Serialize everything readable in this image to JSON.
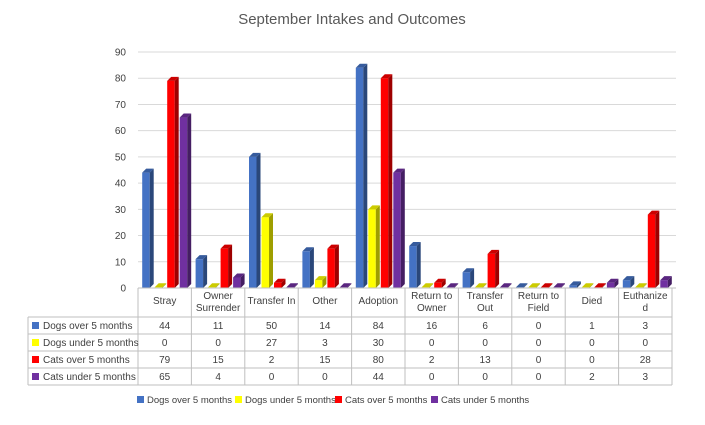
{
  "colors": {
    "series": [
      "#4472C4",
      "#FFFF00",
      "#FF0000",
      "#7030A0"
    ],
    "grid": "#d9d9d9",
    "axis": "#bfbfbf"
  },
  "chart_data": {
    "type": "bar",
    "title": "September Intakes and Outcomes",
    "xlabel": "",
    "ylabel": "",
    "ylim": [
      0,
      90
    ],
    "yticks": [
      0,
      10,
      20,
      30,
      40,
      50,
      60,
      70,
      80,
      90
    ],
    "grid": true,
    "legend_position": "bottom",
    "categories": [
      [
        "Stray"
      ],
      [
        "Owner",
        "Surrender"
      ],
      [
        "Transfer In"
      ],
      [
        "Other"
      ],
      [
        "Adoption"
      ],
      [
        "Return to",
        "Owner"
      ],
      [
        "Transfer",
        "Out"
      ],
      [
        "Return to",
        "Field"
      ],
      [
        "Died"
      ],
      [
        "Euthanize",
        "d"
      ]
    ],
    "series": [
      {
        "name": "Dogs over 5 months",
        "values": [
          44,
          11,
          50,
          14,
          84,
          16,
          6,
          0,
          1,
          3
        ]
      },
      {
        "name": "Dogs under 5 months",
        "values": [
          0,
          0,
          27,
          3,
          30,
          0,
          0,
          0,
          0,
          0
        ]
      },
      {
        "name": "Cats over 5 months",
        "values": [
          79,
          15,
          2,
          15,
          80,
          2,
          13,
          0,
          0,
          28
        ]
      },
      {
        "name": "Cats under 5 months",
        "values": [
          65,
          4,
          0,
          0,
          44,
          0,
          0,
          0,
          2,
          3
        ]
      }
    ]
  }
}
